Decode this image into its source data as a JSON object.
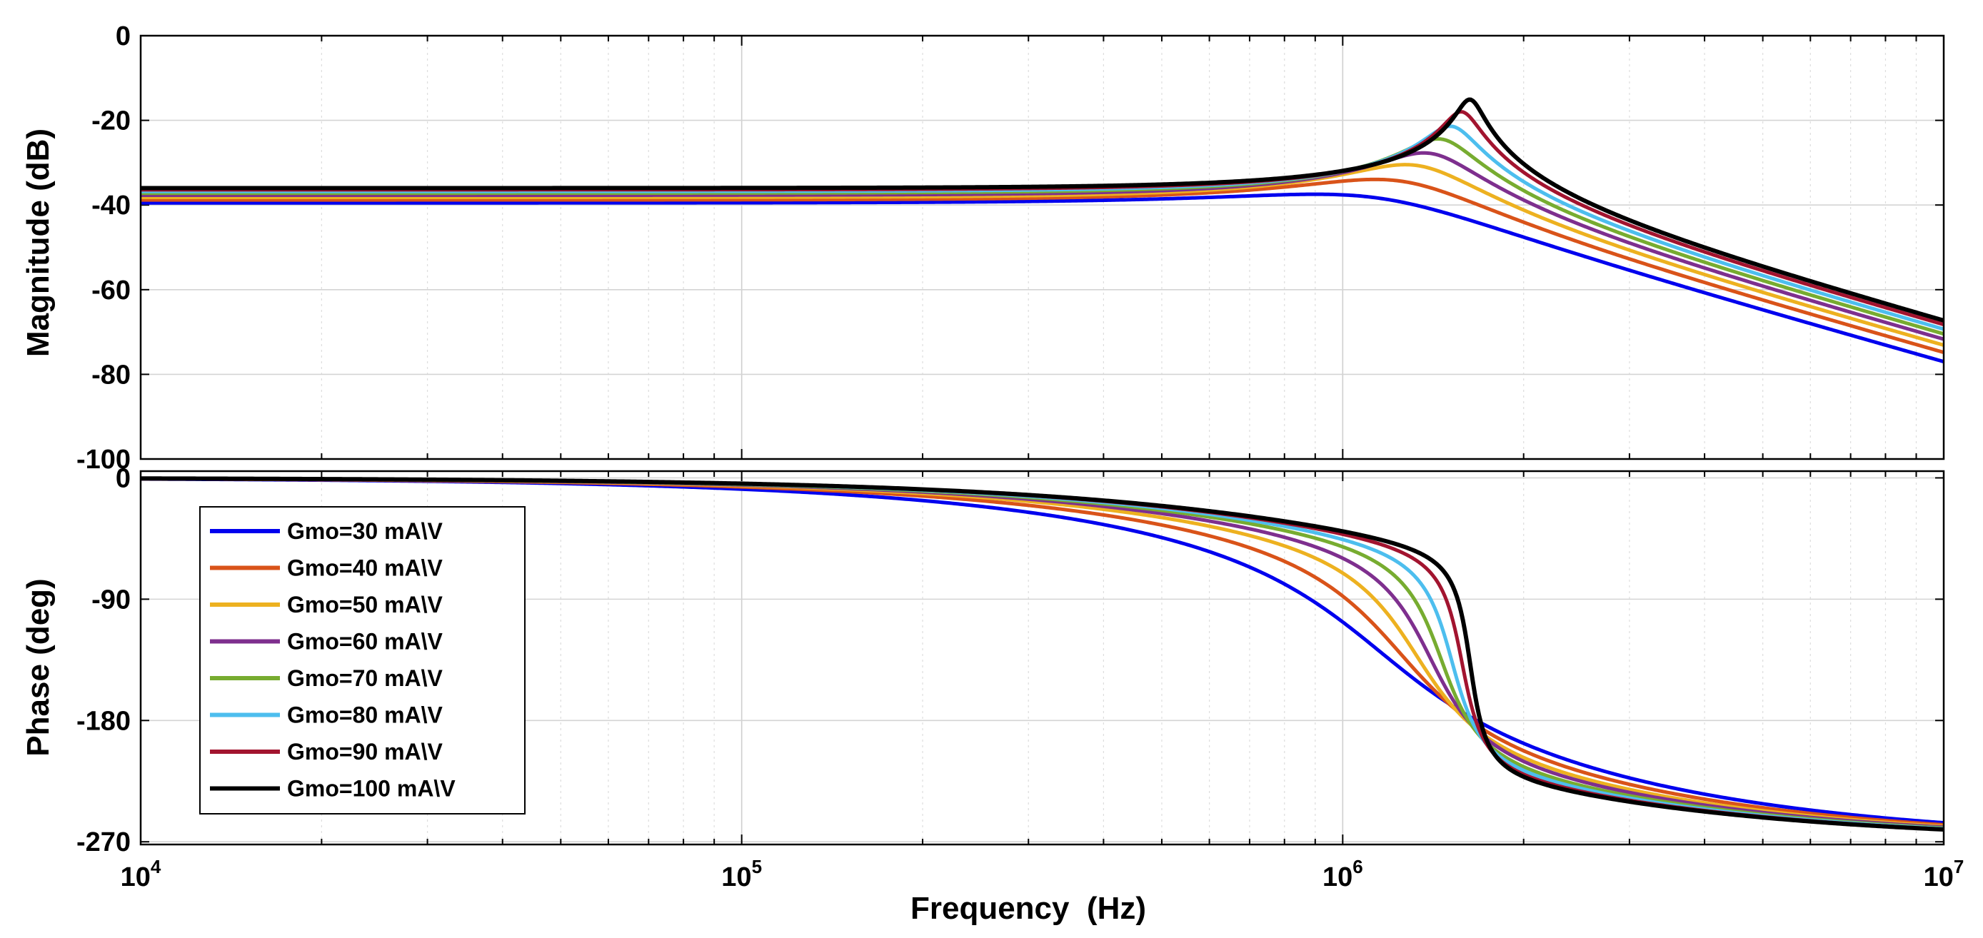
{
  "chart_data": [
    {
      "id": "magnitude",
      "type": "line",
      "xscale": "log",
      "xlim": [
        10000,
        10000000
      ],
      "ylim": [
        -100,
        0
      ],
      "ylabel": "Magnitude (dB)",
      "xlabel": "",
      "grid": true,
      "yticks": [
        0,
        -20,
        -40,
        -60,
        -80,
        -100
      ],
      "ytick_labels": [
        "0",
        "-20",
        "-40",
        "-60",
        "-80",
        "-100"
      ],
      "xticks": [],
      "series_model": "second-order low-pass resonance; dc gain K (dB), resonant frequency f0 (Hz), damping zeta",
      "series": [
        {
          "name": "Gmo=30 mA\\V",
          "color": "#0000ee",
          "dc_gain_db": -39.5,
          "f0_hz": 1150000,
          "zeta": 0.44,
          "peak_db": -34.5
        },
        {
          "name": "Gmo=40 mA\\V",
          "color": "#d95319",
          "dc_gain_db": -38.8,
          "f0_hz": 1250000,
          "zeta": 0.3,
          "peak_db": -31.8
        },
        {
          "name": "Gmo=50 mA\\V",
          "color": "#edb120",
          "dc_gain_db": -38.2,
          "f0_hz": 1330000,
          "zeta": 0.21,
          "peak_db": -29.5
        },
        {
          "name": "Gmo=60 mA\\V",
          "color": "#7e2f8e",
          "dc_gain_db": -37.7,
          "f0_hz": 1400000,
          "zeta": 0.16,
          "peak_db": -27.0
        },
        {
          "name": "Gmo=70 mA\\V",
          "color": "#77ac30",
          "dc_gain_db": -37.2,
          "f0_hz": 1460000,
          "zeta": 0.115,
          "peak_db": -24.7
        },
        {
          "name": "Gmo=80 mA\\V",
          "color": "#4dbeee",
          "dc_gain_db": -36.8,
          "f0_hz": 1520000,
          "zeta": 0.085,
          "peak_db": -22.3
        },
        {
          "name": "Gmo=90 mA\\V",
          "color": "#a2142f",
          "dc_gain_db": -36.4,
          "f0_hz": 1580000,
          "zeta": 0.06,
          "peak_db": -19.7
        },
        {
          "name": "Gmo=100 mA\\V",
          "color": "#000000",
          "dc_gain_db": -36.0,
          "f0_hz": 1630000,
          "zeta": 0.045,
          "peak_db": -17.2
        }
      ]
    },
    {
      "id": "phase",
      "type": "line",
      "xscale": "log",
      "xlim": [
        10000,
        10000000
      ],
      "ylim": [
        -272,
        5
      ],
      "ylabel": "Phase (deg)",
      "xlabel": "Frequency  (Hz)",
      "grid": true,
      "yticks": [
        0,
        -90,
        -180,
        -270
      ],
      "ytick_labels": [
        "0",
        "-90",
        "-180",
        "-270"
      ],
      "xticks": [
        10000,
        100000,
        1000000,
        10000000
      ],
      "xtick_labels": [
        {
          "base": "10",
          "exp": "4"
        },
        {
          "base": "10",
          "exp": "5"
        },
        {
          "base": "10",
          "exp": "6"
        },
        {
          "base": "10",
          "exp": "7"
        }
      ],
      "series_model": "phase of same second-order sections plus extra pole near 1.8e6 Hz; all curves cross near -180 deg at 1.8e6 Hz and approach -265 deg at 1e7 Hz",
      "legend": {
        "placement": "left",
        "entries": [
          "Gmo=30 mA\\V",
          "Gmo=40 mA\\V",
          "Gmo=50 mA\\V",
          "Gmo=60 mA\\V",
          "Gmo=70 mA\\V",
          "Gmo=80 mA\\V",
          "Gmo=90 mA\\V",
          "Gmo=100 mA\\V"
        ]
      }
    }
  ]
}
